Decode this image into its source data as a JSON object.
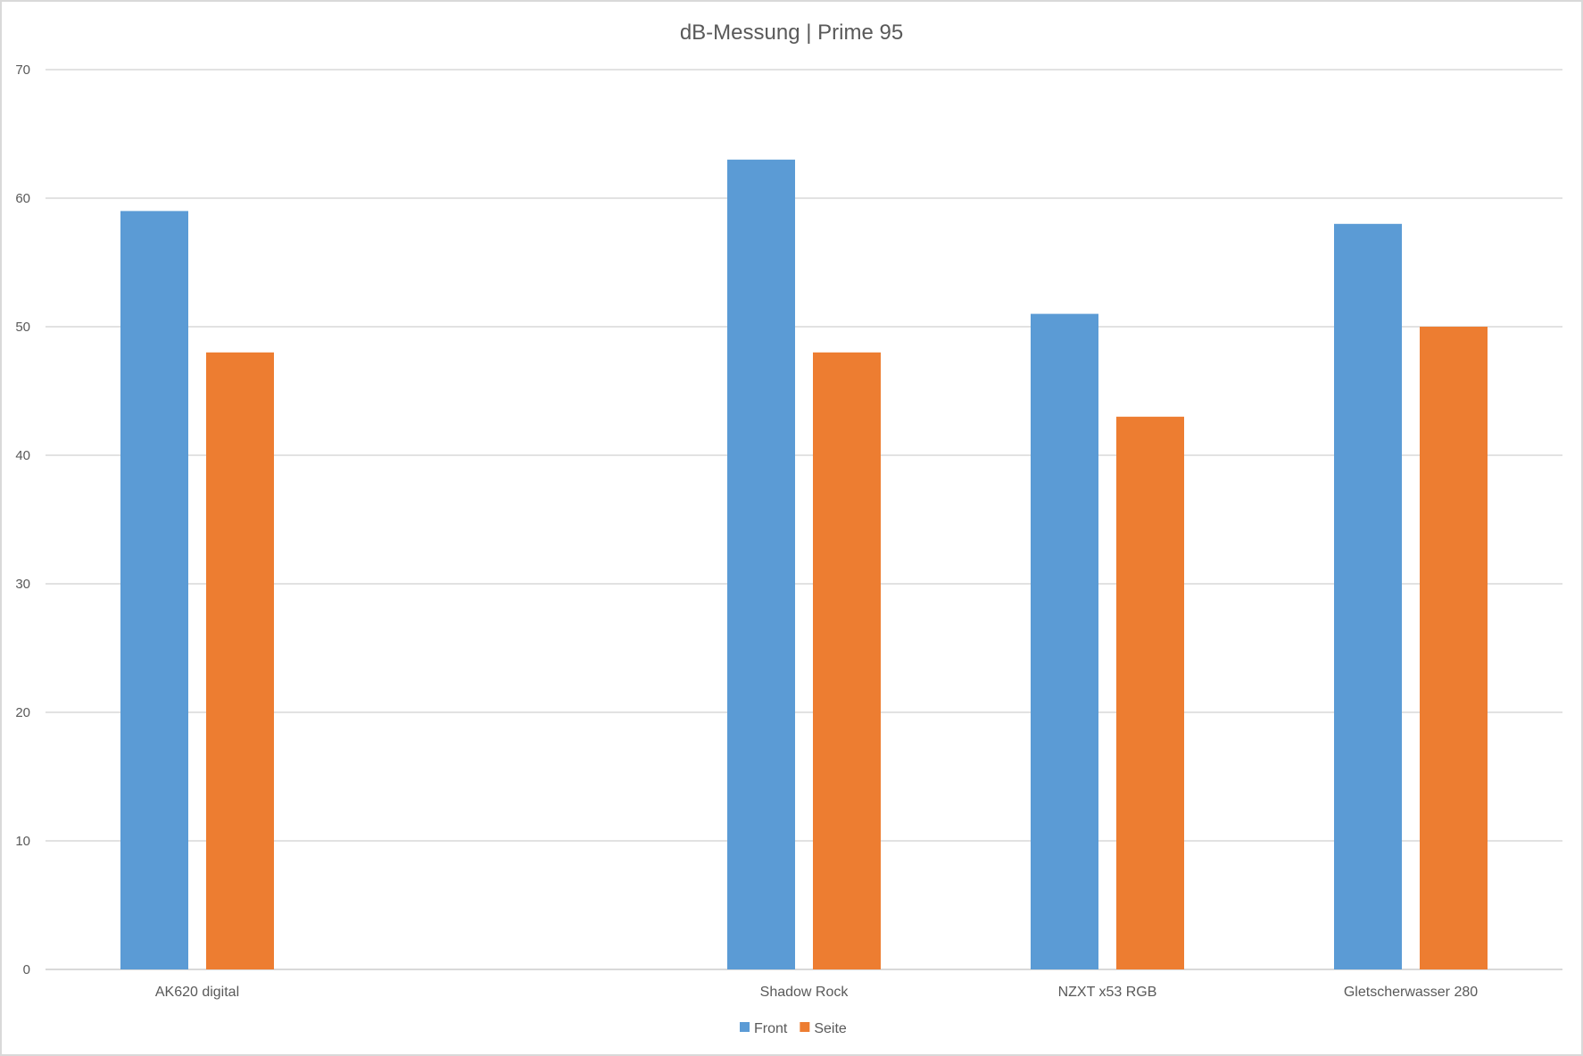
{
  "chart_data": {
    "type": "bar",
    "title": "dB-Messung | Prime 95",
    "xlabel": "",
    "ylabel": "",
    "categories": [
      "AK620 digital",
      "",
      "Shadow Rock",
      "NZXT x53 RGB",
      "Gletscherwasser 280"
    ],
    "series": [
      {
        "name": "Front",
        "color": "#5b9bd5",
        "values": [
          59,
          null,
          63,
          51,
          58
        ]
      },
      {
        "name": "Seite",
        "color": "#ed7d31",
        "values": [
          48,
          null,
          48,
          43,
          50
        ]
      }
    ],
    "ylim": [
      0,
      70
    ],
    "yticks": [
      0,
      10,
      20,
      30,
      40,
      50,
      60,
      70
    ],
    "grid": true,
    "legend": "bottom-center"
  }
}
